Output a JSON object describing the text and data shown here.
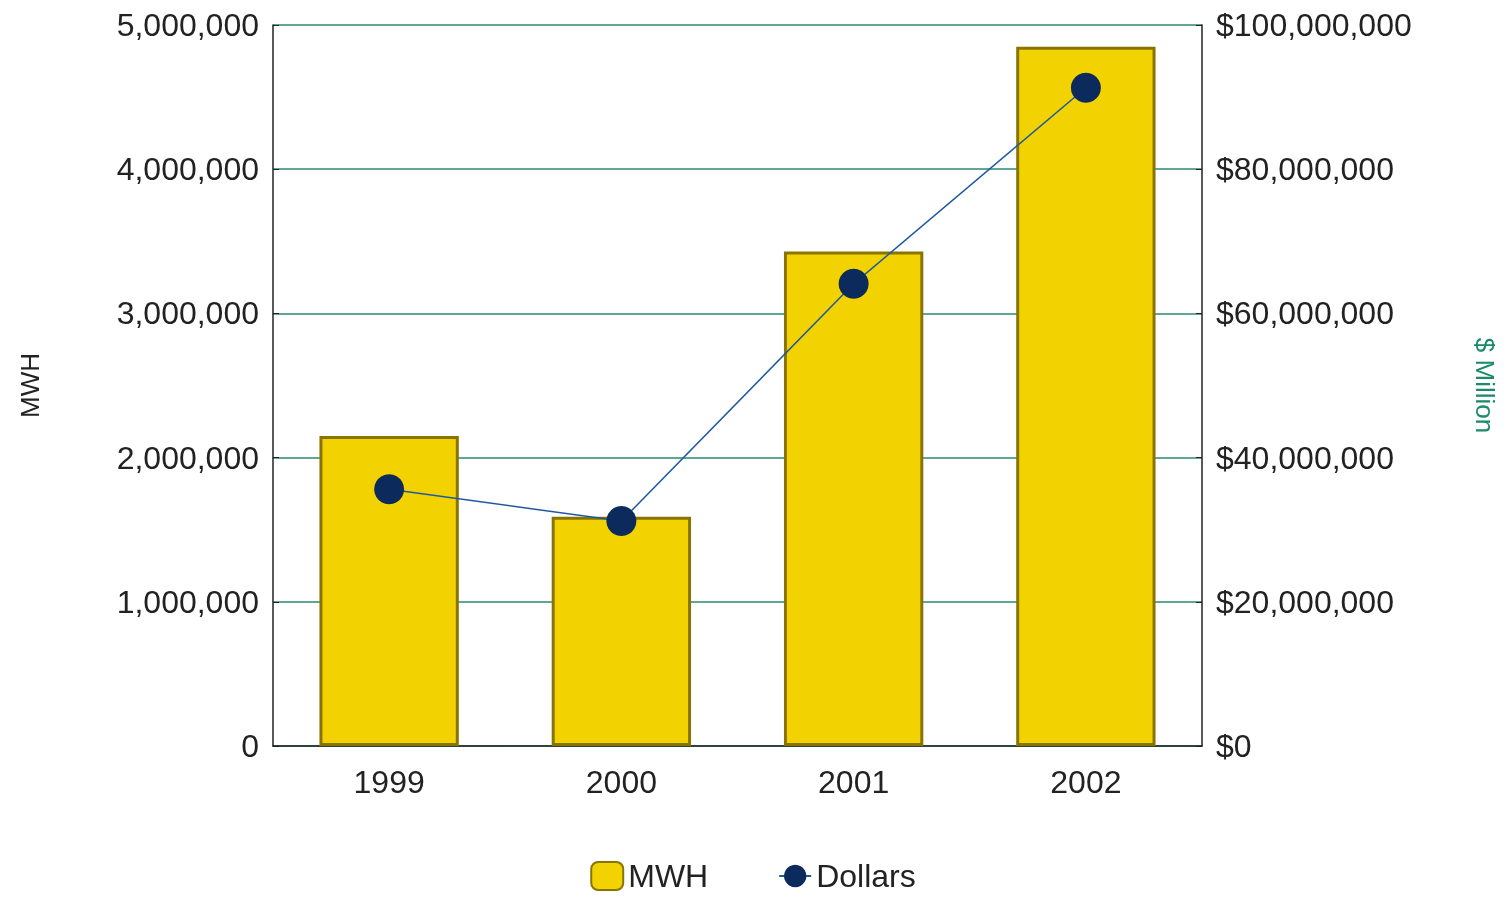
{
  "chart_data": {
    "type": "bar",
    "categories": [
      "1999",
      "2000",
      "2001",
      "2002"
    ],
    "ylabel": "MWH",
    "y2label": "$ Million",
    "series": [
      {
        "name": "MWH",
        "color": "#f2d200",
        "values": [
          2150000,
          1590000,
          3430000,
          4850000
        ]
      },
      {
        "name": "Dollars",
        "type": "line",
        "axis": "y2",
        "color": "#1f5aa0",
        "values": [
          35600000,
          31200000,
          64100000,
          91300000
        ]
      }
    ],
    "ylim": [
      0,
      5000000
    ],
    "yticks": [
      0,
      {
        "value": 1000000,
        "label": "1,000,000"
      },
      {
        "value": 2000000,
        "label": "2,000,000"
      },
      {
        "value": 3000000,
        "label": "3,000,000"
      },
      {
        "value": 4000000,
        "label": "4,000,000"
      },
      {
        "value": 5000000,
        "label": "5,000,000"
      }
    ],
    "y2lim": [
      0,
      100000000
    ],
    "y2ticks": [
      {
        "value": 0,
        "label": "$0"
      },
      {
        "value": 20000000,
        "label": "$20,000,000"
      },
      {
        "value": 40000000,
        "label": "$40,000,000"
      },
      {
        "value": 60000000,
        "label": "$60,000,000"
      },
      {
        "value": 80000000,
        "label": "$80,000,000"
      },
      {
        "value": 100000000,
        "label": "$100,000,000"
      }
    ],
    "grid": "y",
    "legend": "bottom",
    "marker": "circle",
    "line_style": "solid"
  }
}
